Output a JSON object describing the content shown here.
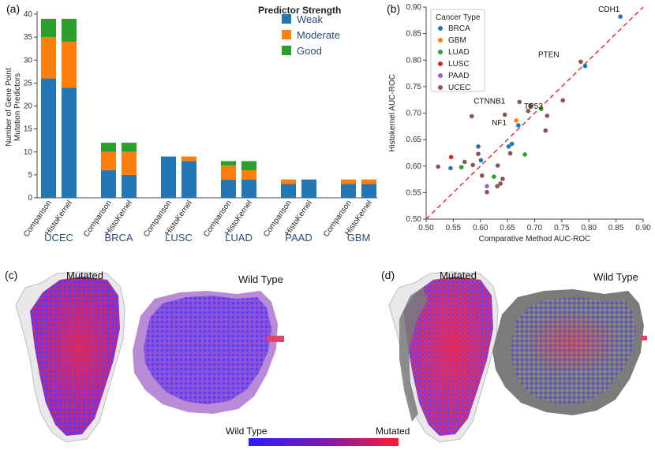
{
  "panels": {
    "a": "(a)",
    "b": "(b)",
    "c": "(c)",
    "d": "(d)"
  },
  "colors": {
    "weak": "#2377b4",
    "moderate": "#ff7f0e",
    "good": "#2ca02c",
    "ucec_label": "#2a4d79",
    "diag": "#e41a1c"
  },
  "chart_data": [
    {
      "type": "bar",
      "subtype": "stacked",
      "title": "",
      "ylabel": "Number of Gene Point Mutation Predictors",
      "ylim": [
        0,
        40
      ],
      "yticks": [
        "0",
        "5",
        "10",
        "15",
        "20",
        "25",
        "30",
        "35",
        "40"
      ],
      "legend_title": "Predictor Strength",
      "legend_placement": "top-right",
      "groups": [
        "UCEC",
        "BRCA",
        "LUSC",
        "LUAD",
        "PAAD",
        "GBM"
      ],
      "bar_labels": [
        "Comparison",
        "HistoKernel"
      ],
      "series": [
        {
          "name": "Weak",
          "values": [
            26,
            24,
            6,
            5,
            9,
            8,
            4,
            4,
            3,
            4,
            3,
            3
          ]
        },
        {
          "name": "Moderate",
          "values": [
            9,
            10,
            4,
            5,
            0,
            1,
            3,
            2,
            1,
            0,
            1,
            1
          ]
        },
        {
          "name": "Good",
          "values": [
            4,
            5,
            2,
            2,
            0,
            0,
            1,
            2,
            0,
            0,
            0,
            0
          ]
        }
      ]
    },
    {
      "type": "scatter",
      "xlabel": "Comparative Method AUC-ROC",
      "ylabel": "Histokernel AUC-ROC",
      "xlim": [
        0.5,
        0.9
      ],
      "ylim": [
        0.5,
        0.9
      ],
      "xticks": [
        "0.50",
        "0.55",
        "0.60",
        "0.65",
        "0.70",
        "0.75",
        "0.80",
        "0.85",
        "0.90"
      ],
      "yticks": [
        "0.50",
        "0.55",
        "0.60",
        "0.65",
        "0.70",
        "0.75",
        "0.80",
        "0.85",
        "0.90"
      ],
      "legend_title": "Cancer Type",
      "legend_placement": "top-left",
      "series": [
        {
          "name": "BRCA",
          "color": "#1f77b4",
          "points": [
            [
              0.858,
              0.882
            ],
            [
              0.793,
              0.789
            ],
            [
              0.67,
              0.677
            ],
            [
              0.658,
              0.642
            ],
            [
              0.652,
              0.637
            ],
            [
              0.596,
              0.637
            ],
            [
              0.545,
              0.596
            ],
            [
              0.601,
              0.611
            ]
          ]
        },
        {
          "name": "GBM",
          "color": "#ff7f0e",
          "points": [
            [
              0.666,
              0.686
            ]
          ]
        },
        {
          "name": "LUAD",
          "color": "#2ca02c",
          "points": [
            [
              0.712,
              0.708
            ],
            [
              0.693,
              0.712
            ],
            [
              0.682,
              0.622
            ],
            [
              0.625,
              0.58
            ],
            [
              0.565,
              0.598
            ]
          ]
        },
        {
          "name": "LUSC",
          "color": "#d62728",
          "points": [
            [
              0.546,
              0.617
            ]
          ]
        },
        {
          "name": "PAAD",
          "color": "#9467bd",
          "points": [
            [
              0.612,
              0.562
            ]
          ]
        },
        {
          "name": "UCEC",
          "color": "#8c564b",
          "points": [
            [
              0.785,
              0.797
            ],
            [
              0.752,
              0.724
            ],
            [
              0.723,
              0.695
            ],
            [
              0.72,
              0.667
            ],
            [
              0.692,
              0.714
            ],
            [
              0.688,
              0.704
            ],
            [
              0.672,
              0.721
            ],
            [
              0.645,
              0.697
            ],
            [
              0.584,
              0.694
            ],
            [
              0.596,
              0.623
            ],
            [
              0.655,
              0.624
            ],
            [
              0.632,
              0.601
            ],
            [
              0.586,
              0.602
            ],
            [
              0.571,
              0.608
            ],
            [
              0.522,
              0.599
            ],
            [
              0.603,
              0.582
            ],
            [
              0.641,
              0.576
            ],
            [
              0.637,
              0.567
            ],
            [
              0.631,
              0.562
            ],
            [
              0.612,
              0.551
            ]
          ]
        }
      ],
      "annotations": [
        {
          "text": "CDH1",
          "x": 0.858,
          "y": 0.882
        },
        {
          "text": "PTEN",
          "x": 0.785,
          "y": 0.797
        },
        {
          "text": "CTNNB1",
          "x": 0.672,
          "y": 0.721
        },
        {
          "text": "TP53",
          "x": 0.692,
          "y": 0.714
        },
        {
          "text": "NF1",
          "x": 0.666,
          "y": 0.686
        }
      ]
    }
  ],
  "slides": {
    "c_mutated": "Mutated",
    "c_wild": "Wild Type",
    "d_mutated": "Mutated",
    "d_wild": "Wild Type"
  },
  "colorbar": {
    "left_label": "Wild Type",
    "right_label": "Mutated",
    "colors": [
      "#2a1cff",
      "#7b18b5",
      "#ff1a2e"
    ]
  }
}
